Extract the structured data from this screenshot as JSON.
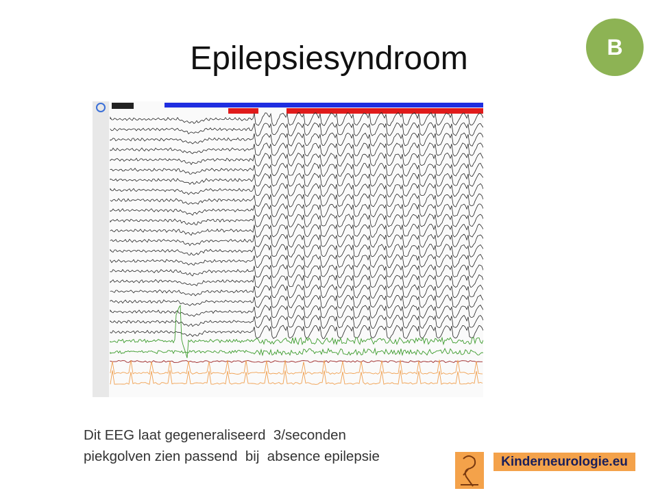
{
  "slide": {
    "title": "Epilepsiesyndroom",
    "badge": "B",
    "caption": [
      "Dit EEG laat gegeneraliseerd  3/seconden",
      "piekgolven zien passend  bij  absence epilepsie"
    ],
    "logo_text": "Kinderneurologie.eu"
  }
}
